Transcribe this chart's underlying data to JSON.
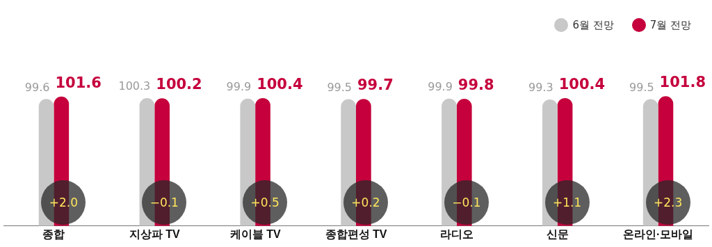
{
  "chart_data": {
    "type": "bar",
    "categories": [
      "종합",
      "지상파 TV",
      "케이블 TV",
      "종합편성 TV",
      "라디오",
      "신문",
      "온라인·모바일"
    ],
    "series": [
      {
        "name": "6월 전망",
        "color": "#c8c8c8",
        "values": [
          99.6,
          100.3,
          99.9,
          99.5,
          99.9,
          99.3,
          99.5
        ]
      },
      {
        "name": "7월 전망",
        "color": "#c5003c",
        "values": [
          101.6,
          100.2,
          100.4,
          99.7,
          99.8,
          100.4,
          101.8
        ]
      }
    ],
    "tick_labels": "x",
    "grid": false,
    "legend": "top right",
    "data_labels": true,
    "annotations": [
      {
        "text": "+2.0",
        "x": "종합"
      },
      {
        "text": "−0.1",
        "x": "지상파 TV"
      },
      {
        "text": "+0.5",
        "x": "케이블 TV"
      },
      {
        "text": "+0.2",
        "x": "종합편성 TV"
      },
      {
        "text": "−0.1",
        "x": "라디오"
      },
      {
        "text": "+1.1",
        "x": "신문"
      },
      {
        "text": "+2.3",
        "x": "온라인·모바일"
      }
    ]
  }
}
